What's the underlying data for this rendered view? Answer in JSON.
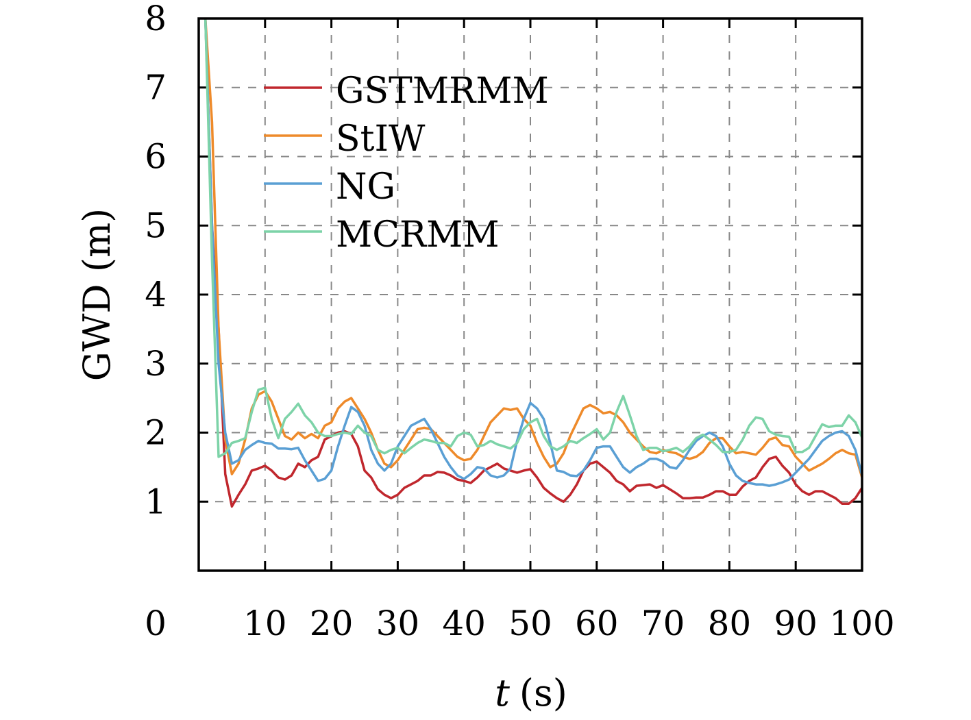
{
  "chart_data": {
    "type": "line",
    "title": "",
    "xlabel_var": "t",
    "xlabel_unit": "(s)",
    "ylabel": "GWD (m)",
    "xlim": [
      0,
      100
    ],
    "ylim": [
      0,
      8
    ],
    "grid": true,
    "legend_position": "top-left",
    "x_ticks": [
      "0",
      "10",
      "20",
      "30",
      "40",
      "50",
      "60",
      "70",
      "80",
      "90",
      "100"
    ],
    "y_ticks": [
      "1",
      "2",
      "3",
      "4",
      "5",
      "6",
      "7",
      "8"
    ],
    "x": [
      1,
      2,
      3,
      4,
      5,
      6,
      7,
      8,
      9,
      10,
      11,
      12,
      13,
      14,
      15,
      16,
      17,
      18,
      19,
      20,
      21,
      22,
      23,
      24,
      25,
      26,
      27,
      28,
      29,
      30,
      31,
      32,
      33,
      34,
      35,
      36,
      37,
      38,
      39,
      40,
      41,
      42,
      43,
      44,
      45,
      46,
      47,
      48,
      49,
      50,
      51,
      52,
      53,
      54,
      55,
      56,
      57,
      58,
      59,
      60,
      61,
      62,
      63,
      64,
      65,
      66,
      67,
      68,
      69,
      70,
      71,
      72,
      73,
      74,
      75,
      76,
      77,
      78,
      79,
      80,
      81,
      82,
      83,
      84,
      85,
      86,
      87,
      88,
      89,
      90,
      91,
      92,
      93,
      94,
      95,
      96,
      97,
      98,
      99,
      100
    ],
    "series": [
      {
        "name": "GSTMRMM",
        "color": "#c0272d",
        "values": [
          8,
          5,
          3.5,
          1.4,
          0.93,
          1.1,
          1.25,
          1.45,
          1.48,
          1.52,
          1.45,
          1.35,
          1.32,
          1.38,
          1.55,
          1.5,
          1.6,
          1.65,
          1.9,
          1.95,
          2.0,
          2.02,
          1.98,
          1.8,
          1.45,
          1.35,
          1.18,
          1.1,
          1.05,
          1.1,
          1.2,
          1.25,
          1.3,
          1.38,
          1.38,
          1.43,
          1.42,
          1.38,
          1.32,
          1.3,
          1.27,
          1.35,
          1.45,
          1.5,
          1.55,
          1.48,
          1.45,
          1.42,
          1.45,
          1.47,
          1.35,
          1.2,
          1.12,
          1.05,
          1.0,
          1.1,
          1.25,
          1.45,
          1.55,
          1.58,
          1.5,
          1.42,
          1.3,
          1.25,
          1.15,
          1.23,
          1.24,
          1.25,
          1.2,
          1.24,
          1.18,
          1.12,
          1.05,
          1.05,
          1.06,
          1.06,
          1.1,
          1.15,
          1.15,
          1.1,
          1.1,
          1.22,
          1.3,
          1.35,
          1.5,
          1.62,
          1.65,
          1.52,
          1.42,
          1.25,
          1.15,
          1.1,
          1.15,
          1.15,
          1.1,
          1.05,
          0.97,
          0.97,
          1.05,
          1.2
        ]
      },
      {
        "name": "StIW",
        "color": "#ee8a2a",
        "values": [
          8,
          6.5,
          3.5,
          1.9,
          1.4,
          1.55,
          1.9,
          2.35,
          2.55,
          2.6,
          2.45,
          2.2,
          1.95,
          1.9,
          2.0,
          1.92,
          1.98,
          1.92,
          2.1,
          2.15,
          2.35,
          2.45,
          2.5,
          2.35,
          2.2,
          2.0,
          1.75,
          1.55,
          1.5,
          1.6,
          1.75,
          1.9,
          2.05,
          2.07,
          2.05,
          1.95,
          1.85,
          1.75,
          1.65,
          1.6,
          1.62,
          1.75,
          1.95,
          2.15,
          2.25,
          2.35,
          2.33,
          2.35,
          2.2,
          2.1,
          1.85,
          1.65,
          1.5,
          1.55,
          1.7,
          1.95,
          2.15,
          2.35,
          2.4,
          2.35,
          2.28,
          2.3,
          2.25,
          2.15,
          2.0,
          1.9,
          1.8,
          1.72,
          1.7,
          1.75,
          1.72,
          1.7,
          1.65,
          1.62,
          1.65,
          1.72,
          1.85,
          1.92,
          1.92,
          1.8,
          1.7,
          1.72,
          1.7,
          1.68,
          1.78,
          1.9,
          1.93,
          1.82,
          1.8,
          1.65,
          1.55,
          1.45,
          1.5,
          1.55,
          1.62,
          1.7,
          1.75,
          1.7,
          1.68,
          1.35
        ]
      },
      {
        "name": "NG",
        "color": "#5a9fd4",
        "values": [
          8,
          5,
          3.0,
          2.0,
          1.55,
          1.6,
          1.75,
          1.82,
          1.88,
          1.85,
          1.84,
          1.77,
          1.77,
          1.76,
          1.78,
          1.6,
          1.45,
          1.3,
          1.33,
          1.45,
          1.8,
          2.1,
          2.37,
          2.3,
          2.1,
          1.75,
          1.55,
          1.45,
          1.55,
          1.8,
          1.95,
          2.1,
          2.15,
          2.2,
          2.05,
          1.85,
          1.65,
          1.5,
          1.38,
          1.33,
          1.4,
          1.5,
          1.48,
          1.38,
          1.35,
          1.38,
          1.48,
          1.88,
          2.2,
          2.43,
          2.35,
          2.2,
          1.85,
          1.45,
          1.43,
          1.38,
          1.37,
          1.45,
          1.6,
          1.78,
          1.8,
          1.8,
          1.65,
          1.5,
          1.42,
          1.5,
          1.55,
          1.62,
          1.62,
          1.58,
          1.5,
          1.48,
          1.6,
          1.75,
          1.88,
          1.95,
          2.0,
          1.95,
          1.8,
          1.55,
          1.38,
          1.3,
          1.27,
          1.25,
          1.25,
          1.23,
          1.25,
          1.28,
          1.32,
          1.42,
          1.52,
          1.62,
          1.75,
          1.88,
          1.95,
          2.0,
          2.02,
          1.95,
          1.75,
          1.38
        ]
      },
      {
        "name": "MCRMM",
        "color": "#7dd3a8",
        "values": [
          8,
          4.5,
          1.65,
          1.7,
          1.85,
          1.88,
          1.92,
          2.3,
          2.62,
          2.65,
          2.2,
          1.92,
          2.2,
          2.3,
          2.42,
          2.25,
          2.15,
          2.0,
          1.95,
          1.95,
          1.98,
          2.0,
          1.98,
          2.1,
          2.0,
          1.95,
          1.75,
          1.7,
          1.75,
          1.78,
          1.7,
          1.78,
          1.85,
          1.9,
          1.88,
          1.85,
          1.85,
          1.8,
          1.95,
          2.0,
          1.97,
          1.8,
          1.82,
          1.88,
          1.83,
          1.8,
          1.77,
          1.85,
          2.05,
          2.15,
          2.2,
          1.95,
          1.8,
          1.75,
          1.8,
          1.88,
          1.85,
          1.92,
          1.98,
          2.05,
          1.9,
          2.0,
          2.3,
          2.53,
          2.25,
          1.95,
          1.75,
          1.78,
          1.78,
          1.73,
          1.75,
          1.78,
          1.72,
          1.8,
          1.92,
          1.97,
          1.9,
          1.82,
          1.72,
          1.72,
          1.75,
          1.9,
          2.1,
          2.22,
          2.2,
          2.02,
          1.97,
          1.95,
          1.94,
          1.72,
          1.72,
          1.78,
          1.95,
          2.12,
          2.08,
          2.1,
          2.1,
          2.25,
          2.15,
          1.93
        ]
      }
    ]
  }
}
